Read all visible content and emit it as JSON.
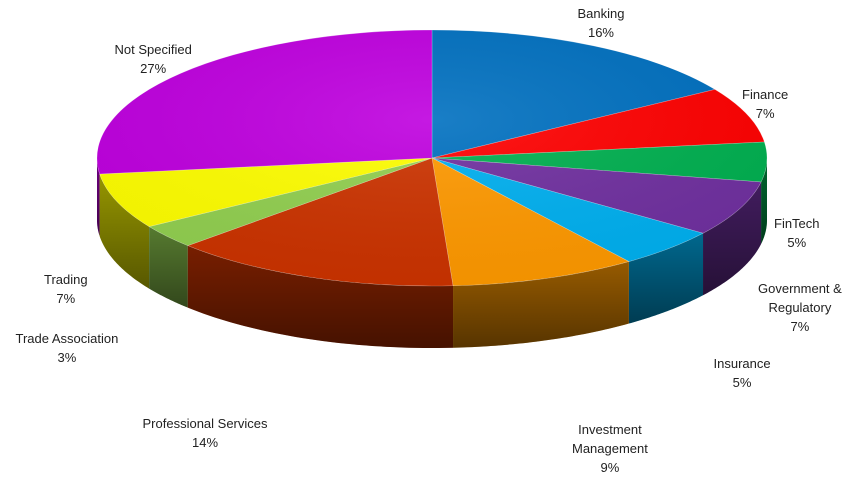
{
  "chart_data": {
    "type": "pie",
    "title": "",
    "legend": "none",
    "slices": [
      {
        "label": "Banking",
        "value": 16,
        "pct_label": "16%",
        "color": "#0070C0"
      },
      {
        "label": "Finance",
        "value": 7,
        "pct_label": "7%",
        "color": "#FF0000"
      },
      {
        "label": "FinTech",
        "value": 5,
        "pct_label": "5%",
        "color": "#00B050"
      },
      {
        "label": "Government & Regulatory",
        "value": 7,
        "pct_label": "7%",
        "color": "#7030A0"
      },
      {
        "label": "Insurance",
        "value": 5,
        "pct_label": "5%",
        "color": "#00B0F0"
      },
      {
        "label": "Investment Management",
        "value": 9,
        "pct_label": "9%",
        "color": "#FF9900"
      },
      {
        "label": "Professional Services",
        "value": 14,
        "pct_label": "14%",
        "color": "#CC3300"
      },
      {
        "label": "Trade Association",
        "value": 3,
        "pct_label": "3%",
        "color": "#92D050"
      },
      {
        "label": "Trading",
        "value": 7,
        "pct_label": "7%",
        "color": "#FFFF00"
      },
      {
        "label": "Not Specified",
        "value": 27,
        "pct_label": "27%",
        "color": "#BF00DF"
      }
    ]
  }
}
